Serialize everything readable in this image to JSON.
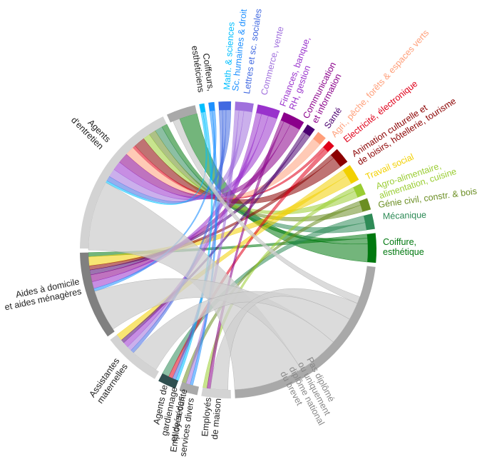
{
  "chart_data": {
    "type": "chord",
    "title": "",
    "sectors": [
      {
        "name": "Coiffure, esthétique",
        "group": "field",
        "color": "#00780f",
        "value": 4.0
      },
      {
        "name": "Mécanique",
        "group": "field",
        "color": "#2e8b57",
        "value": 2.1
      },
      {
        "name": "Génie civil, constr. & bois",
        "group": "field",
        "color": "#6b8e23",
        "value": 1.6
      },
      {
        "name": "Agro-alimentaire, alimentation, cuisine",
        "group": "field",
        "color": "#9acd32",
        "value": 1.6
      },
      {
        "name": "Travail social",
        "group": "field",
        "color": "#f2d000",
        "value": 2.3
      },
      {
        "name": "Animation culturelle et de loisirs, hôtellerie, tourisme",
        "group": "field",
        "color": "#8b0000",
        "value": 2.2
      },
      {
        "name": "Electricité, électronique",
        "group": "field",
        "color": "#e0001a",
        "value": 1.0
      },
      {
        "name": "Agri., pêche, forêts & espaces verts",
        "group": "field",
        "color": "#ff9f7a",
        "value": 1.3
      },
      {
        "name": "Santé",
        "group": "field",
        "color": "#4b0070",
        "value": 1.2
      },
      {
        "name": "Communication et information",
        "group": "field",
        "color": "#8b008b",
        "value": 3.0
      },
      {
        "name": "Finances, banque, RH, gestion",
        "group": "field",
        "color": "#9932cc",
        "value": 3.1
      },
      {
        "name": "Commerce, vente",
        "group": "field",
        "color": "#a070dd",
        "value": 2.5
      },
      {
        "name": "Lettres et sc. sociales",
        "group": "field",
        "color": "#4169e1",
        "value": 1.7
      },
      {
        "name": "Sc. humaines & droit",
        "group": "field",
        "color": "#1e90ff",
        "value": 0.8
      },
      {
        "name": "Math. & sciences",
        "group": "field",
        "color": "#00bfff",
        "value": 0.7
      },
      {
        "name": "Coiffeurs, esthéticiens",
        "group": "job",
        "color": "#a9a9a9",
        "value": 4.0
      },
      {
        "name": "Agents d'entretien",
        "group": "job",
        "color": "#d3d3d3",
        "value": 22.0
      },
      {
        "name": "Aides à domicile et aides ménagères",
        "group": "job",
        "color": "#808080",
        "value": 12.0
      },
      {
        "name": "Assistantes maternelles",
        "group": "job",
        "color": "#d3d3d3",
        "value": 8.0
      },
      {
        "name": "Agents de gardiennage et de sécurité",
        "group": "job",
        "color": "#2f4f4f",
        "value": 2.5
      },
      {
        "name": "Employés des services divers",
        "group": "job",
        "color": "#a9a9a9",
        "value": 2.5
      },
      {
        "name": "Employés de maison",
        "group": "job",
        "color": "#d3d3d3",
        "value": 4.0
      },
      {
        "name": "Pas diplômé ou uniquement diplôme national du brevet",
        "group": "field",
        "color": "#a9a9a9",
        "value": 28.0
      }
    ],
    "flows": [
      {
        "from": "Coiffure, esthétique",
        "to": "Coiffeurs, esthéticiens",
        "value": 2.6
      },
      {
        "from": "Coiffure, esthétique",
        "to": "Agents d'entretien",
        "value": 0.8
      },
      {
        "from": "Coiffure, esthétique",
        "to": "Aides à domicile et aides ménagères",
        "value": 0.6
      },
      {
        "from": "Mécanique",
        "to": "Agents d'entretien",
        "value": 1.1
      },
      {
        "from": "Mécanique",
        "to": "Agents de gardiennage et de sécurité",
        "value": 1.0
      },
      {
        "from": "Génie civil, constr. & bois",
        "to": "Agents d'entretien",
        "value": 1.0
      },
      {
        "from": "Génie civil, constr. & bois",
        "to": "Employés des services divers",
        "value": 0.6
      },
      {
        "from": "Agro-alimentaire, alimentation, cuisine",
        "to": "Agents d'entretien",
        "value": 1.0
      },
      {
        "from": "Agro-alimentaire, alimentation, cuisine",
        "to": "Employés de maison",
        "value": 0.6
      },
      {
        "from": "Travail social",
        "to": "Aides à domicile et aides ménagères",
        "value": 1.3
      },
      {
        "from": "Travail social",
        "to": "Assistantes maternelles",
        "value": 1.0
      },
      {
        "from": "Animation culturelle et de loisirs, hôtellerie, tourisme",
        "to": "Agents d'entretien",
        "value": 1.6
      },
      {
        "from": "Animation culturelle et de loisirs, hôtellerie, tourisme",
        "to": "Aides à domicile et aides ménagères",
        "value": 0.6
      },
      {
        "from": "Electricité, électronique",
        "to": "Agents de gardiennage et de sécurité",
        "value": 0.6
      },
      {
        "from": "Electricité, électronique",
        "to": "Agents d'entretien",
        "value": 0.4
      },
      {
        "from": "Agri., pêche, forêts & espaces verts",
        "to": "Agents d'entretien",
        "value": 1.3
      },
      {
        "from": "Santé",
        "to": "Aides à domicile et aides ménagères",
        "value": 0.7
      },
      {
        "from": "Santé",
        "to": "Assistantes maternelles",
        "value": 0.5
      },
      {
        "from": "Communication et information",
        "to": "Agents d'entretien",
        "value": 1.5
      },
      {
        "from": "Communication et information",
        "to": "Aides à domicile et aides ménagères",
        "value": 1.0
      },
      {
        "from": "Communication et information",
        "to": "Employés de maison",
        "value": 0.5
      },
      {
        "from": "Finances, banque, RH, gestion",
        "to": "Agents d'entretien",
        "value": 1.3
      },
      {
        "from": "Finances, banque, RH, gestion",
        "to": "Aides à domicile et aides ménagères",
        "value": 1.0
      },
      {
        "from": "Finances, banque, RH, gestion",
        "to": "Assistantes maternelles",
        "value": 0.8
      },
      {
        "from": "Commerce, vente",
        "to": "Agents d'entretien",
        "value": 1.2
      },
      {
        "from": "Commerce, vente",
        "to": "Assistantes maternelles",
        "value": 0.7
      },
      {
        "from": "Commerce, vente",
        "to": "Employés des services divers",
        "value": 0.6
      },
      {
        "from": "Lettres et sc. sociales",
        "to": "Agents d'entretien",
        "value": 0.7
      },
      {
        "from": "Lettres et sc. sociales",
        "to": "Assistantes maternelles",
        "value": 0.5
      },
      {
        "from": "Lettres et sc. sociales",
        "to": "Agents de gardiennage et de sécurité",
        "value": 0.5
      },
      {
        "from": "Sc. humaines & droit",
        "to": "Aides à domicile et aides ménagères",
        "value": 0.4
      },
      {
        "from": "Sc. humaines & droit",
        "to": "Employés des services divers",
        "value": 0.4
      },
      {
        "from": "Math. & sciences",
        "to": "Agents de gardiennage et de sécurité",
        "value": 0.4
      },
      {
        "from": "Math. & sciences",
        "to": "Agents d'entretien",
        "value": 0.3
      },
      {
        "from": "Pas diplômé ou uniquement diplôme national du brevet",
        "to": "Agents d'entretien",
        "value": 10.0
      },
      {
        "from": "Pas diplômé ou uniquement diplôme national du brevet",
        "to": "Aides à domicile et aides ménagères",
        "value": 6.0
      },
      {
        "from": "Pas diplômé ou uniquement diplôme national du brevet",
        "to": "Assistantes maternelles",
        "value": 4.0
      },
      {
        "from": "Pas diplômé ou uniquement diplôme national du brevet",
        "to": "Employés de maison",
        "value": 2.5
      },
      {
        "from": "Pas diplômé ou uniquement diplôme national du brevet",
        "to": "Coiffeurs, esthéticiens",
        "value": 1.0
      }
    ]
  },
  "labels": [
    {
      "key": "coiffure",
      "lines": [
        "Coiffure,",
        "esthétique"
      ],
      "color": "#00780f"
    },
    {
      "key": "mecanique",
      "lines": [
        "Mécanique"
      ],
      "color": "#2e8b57"
    },
    {
      "key": "genie",
      "lines": [
        "Génie civil, constr. & bois"
      ],
      "color": "#6b8e23"
    },
    {
      "key": "agro",
      "lines": [
        "Agro-alimentaire,",
        "alimentation, cuisine"
      ],
      "color": "#9acd32"
    },
    {
      "key": "social",
      "lines": [
        "Travail social"
      ],
      "color": "#f2d000"
    },
    {
      "key": "animation",
      "lines": [
        "Animation culturelle et",
        "de loisirs, hôtellerie, tourisme"
      ],
      "color": "#8b0000"
    },
    {
      "key": "electricite",
      "lines": [
        "Electricité, électronique"
      ],
      "color": "#e0001a"
    },
    {
      "key": "agri",
      "lines": [
        "Agri., pêche, forêts & espaces verts"
      ],
      "color": "#ff9f7a"
    },
    {
      "key": "sante",
      "lines": [
        "Santé"
      ],
      "color": "#4b0070"
    },
    {
      "key": "communication",
      "lines": [
        "Communication",
        "et information"
      ],
      "color": "#8b008b"
    },
    {
      "key": "finances",
      "lines": [
        "Finances, banque,",
        "RH, gestion"
      ],
      "color": "#9932cc"
    },
    {
      "key": "commerce",
      "lines": [
        "Commerce, vente"
      ],
      "color": "#a070dd"
    },
    {
      "key": "lettres",
      "lines": [
        "Lettres et sc. sociales"
      ],
      "color": "#4169e1"
    },
    {
      "key": "schumaines",
      "lines": [
        "Sc. humaines & droit"
      ],
      "color": "#1e90ff"
    },
    {
      "key": "math",
      "lines": [
        "Math. & sciences"
      ],
      "color": "#00bfff"
    },
    {
      "key": "coiffeurs",
      "lines": [
        "Coiffeurs,",
        "esthéticiens"
      ],
      "color": "#222222"
    },
    {
      "key": "agents-entretien",
      "lines": [
        "Agents",
        "d'entretien"
      ],
      "color": "#222222"
    },
    {
      "key": "aides-domicile",
      "lines": [
        "Aides à domicile",
        "et aides ménagères"
      ],
      "color": "#222222"
    },
    {
      "key": "assistantes",
      "lines": [
        "Assistantes",
        "maternelles"
      ],
      "color": "#222222"
    },
    {
      "key": "gardiennage",
      "lines": [
        "Agents de",
        "gardiennage",
        "et de sécurité"
      ],
      "color": "#222222"
    },
    {
      "key": "services-divers",
      "lines": [
        "Employés des",
        "services divers"
      ],
      "color": "#222222"
    },
    {
      "key": "employes-maison",
      "lines": [
        "Employés",
        "de maison"
      ],
      "color": "#222222"
    },
    {
      "key": "pas-diplome",
      "lines": [
        "Pas diplômé",
        "ou uniquement",
        "diplôme national",
        "du brevet"
      ],
      "color": "#888888"
    }
  ]
}
